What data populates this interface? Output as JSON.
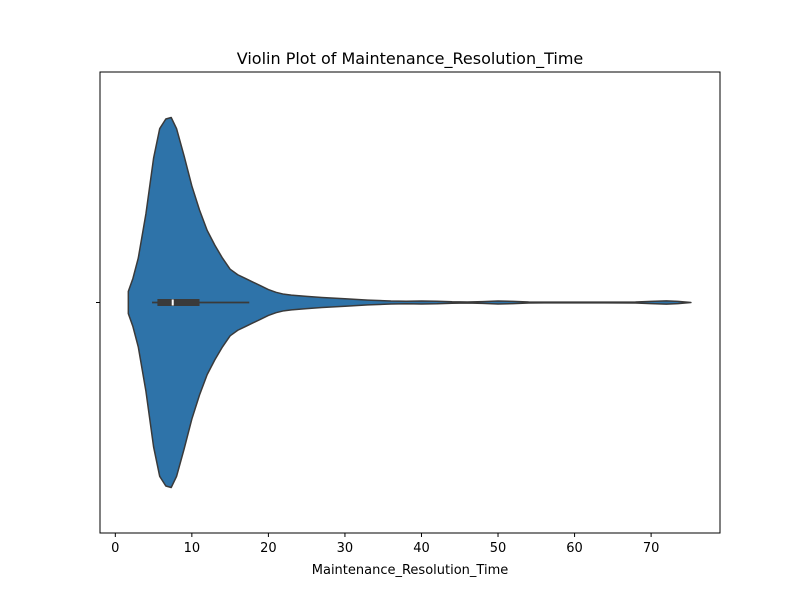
{
  "chart_data": {
    "type": "violin",
    "title": "Violin Plot of Maintenance_Resolution_Time",
    "xlabel": "Maintenance_Resolution_Time",
    "ylabel": "",
    "xlim": [
      -2,
      79
    ],
    "xticks": [
      0,
      10,
      20,
      30,
      40,
      50,
      60,
      70
    ],
    "xtick_labels": [
      "0",
      "10",
      "20",
      "30",
      "40",
      "50",
      "60",
      "70"
    ],
    "grid": false,
    "legend": "none",
    "series": [
      {
        "color": "#2e73a9",
        "range": [
          1.7,
          75.2
        ],
        "density_profile": {
          "x": [
            1.7,
            2.3,
            3.0,
            4.0,
            5.0,
            5.8,
            6.6,
            7.3,
            8.0,
            9.0,
            10.0,
            11.0,
            12.0,
            13.0,
            14.0,
            15.0,
            16.0,
            17.0,
            18.0,
            19.0,
            20.0,
            21.0,
            22.0,
            23.0,
            25.0,
            27.0,
            30.0,
            33.0,
            36.0,
            38.0,
            40.0,
            42.0,
            44.0,
            46.0,
            48.0,
            50.0,
            52.0,
            54.0,
            56.0,
            60.0,
            64.0,
            68.0,
            70.0,
            72.0,
            73.5,
            75.2
          ],
          "relative_width": [
            0.06,
            0.13,
            0.24,
            0.48,
            0.78,
            0.94,
            0.992,
            1.0,
            0.94,
            0.79,
            0.63,
            0.5,
            0.39,
            0.31,
            0.24,
            0.18,
            0.15,
            0.13,
            0.11,
            0.09,
            0.07,
            0.055,
            0.045,
            0.04,
            0.033,
            0.027,
            0.02,
            0.013,
            0.008,
            0.007,
            0.008,
            0.007,
            0.004,
            0.003,
            0.005,
            0.008,
            0.006,
            0.003,
            0.002,
            0.002,
            0.002,
            0.003,
            0.006,
            0.009,
            0.006,
            0.0
          ]
        },
        "box": {
          "q1": 5.5,
          "median": 7.5,
          "q3": 11.0,
          "whisker_low": 4.8,
          "whisker_high": 17.5
        }
      }
    ]
  },
  "colors": {
    "violin_fill": "#2e73a9",
    "violin_edge": "#3a3a3a",
    "box": "#3a3a3a",
    "median": "#ffffff"
  }
}
